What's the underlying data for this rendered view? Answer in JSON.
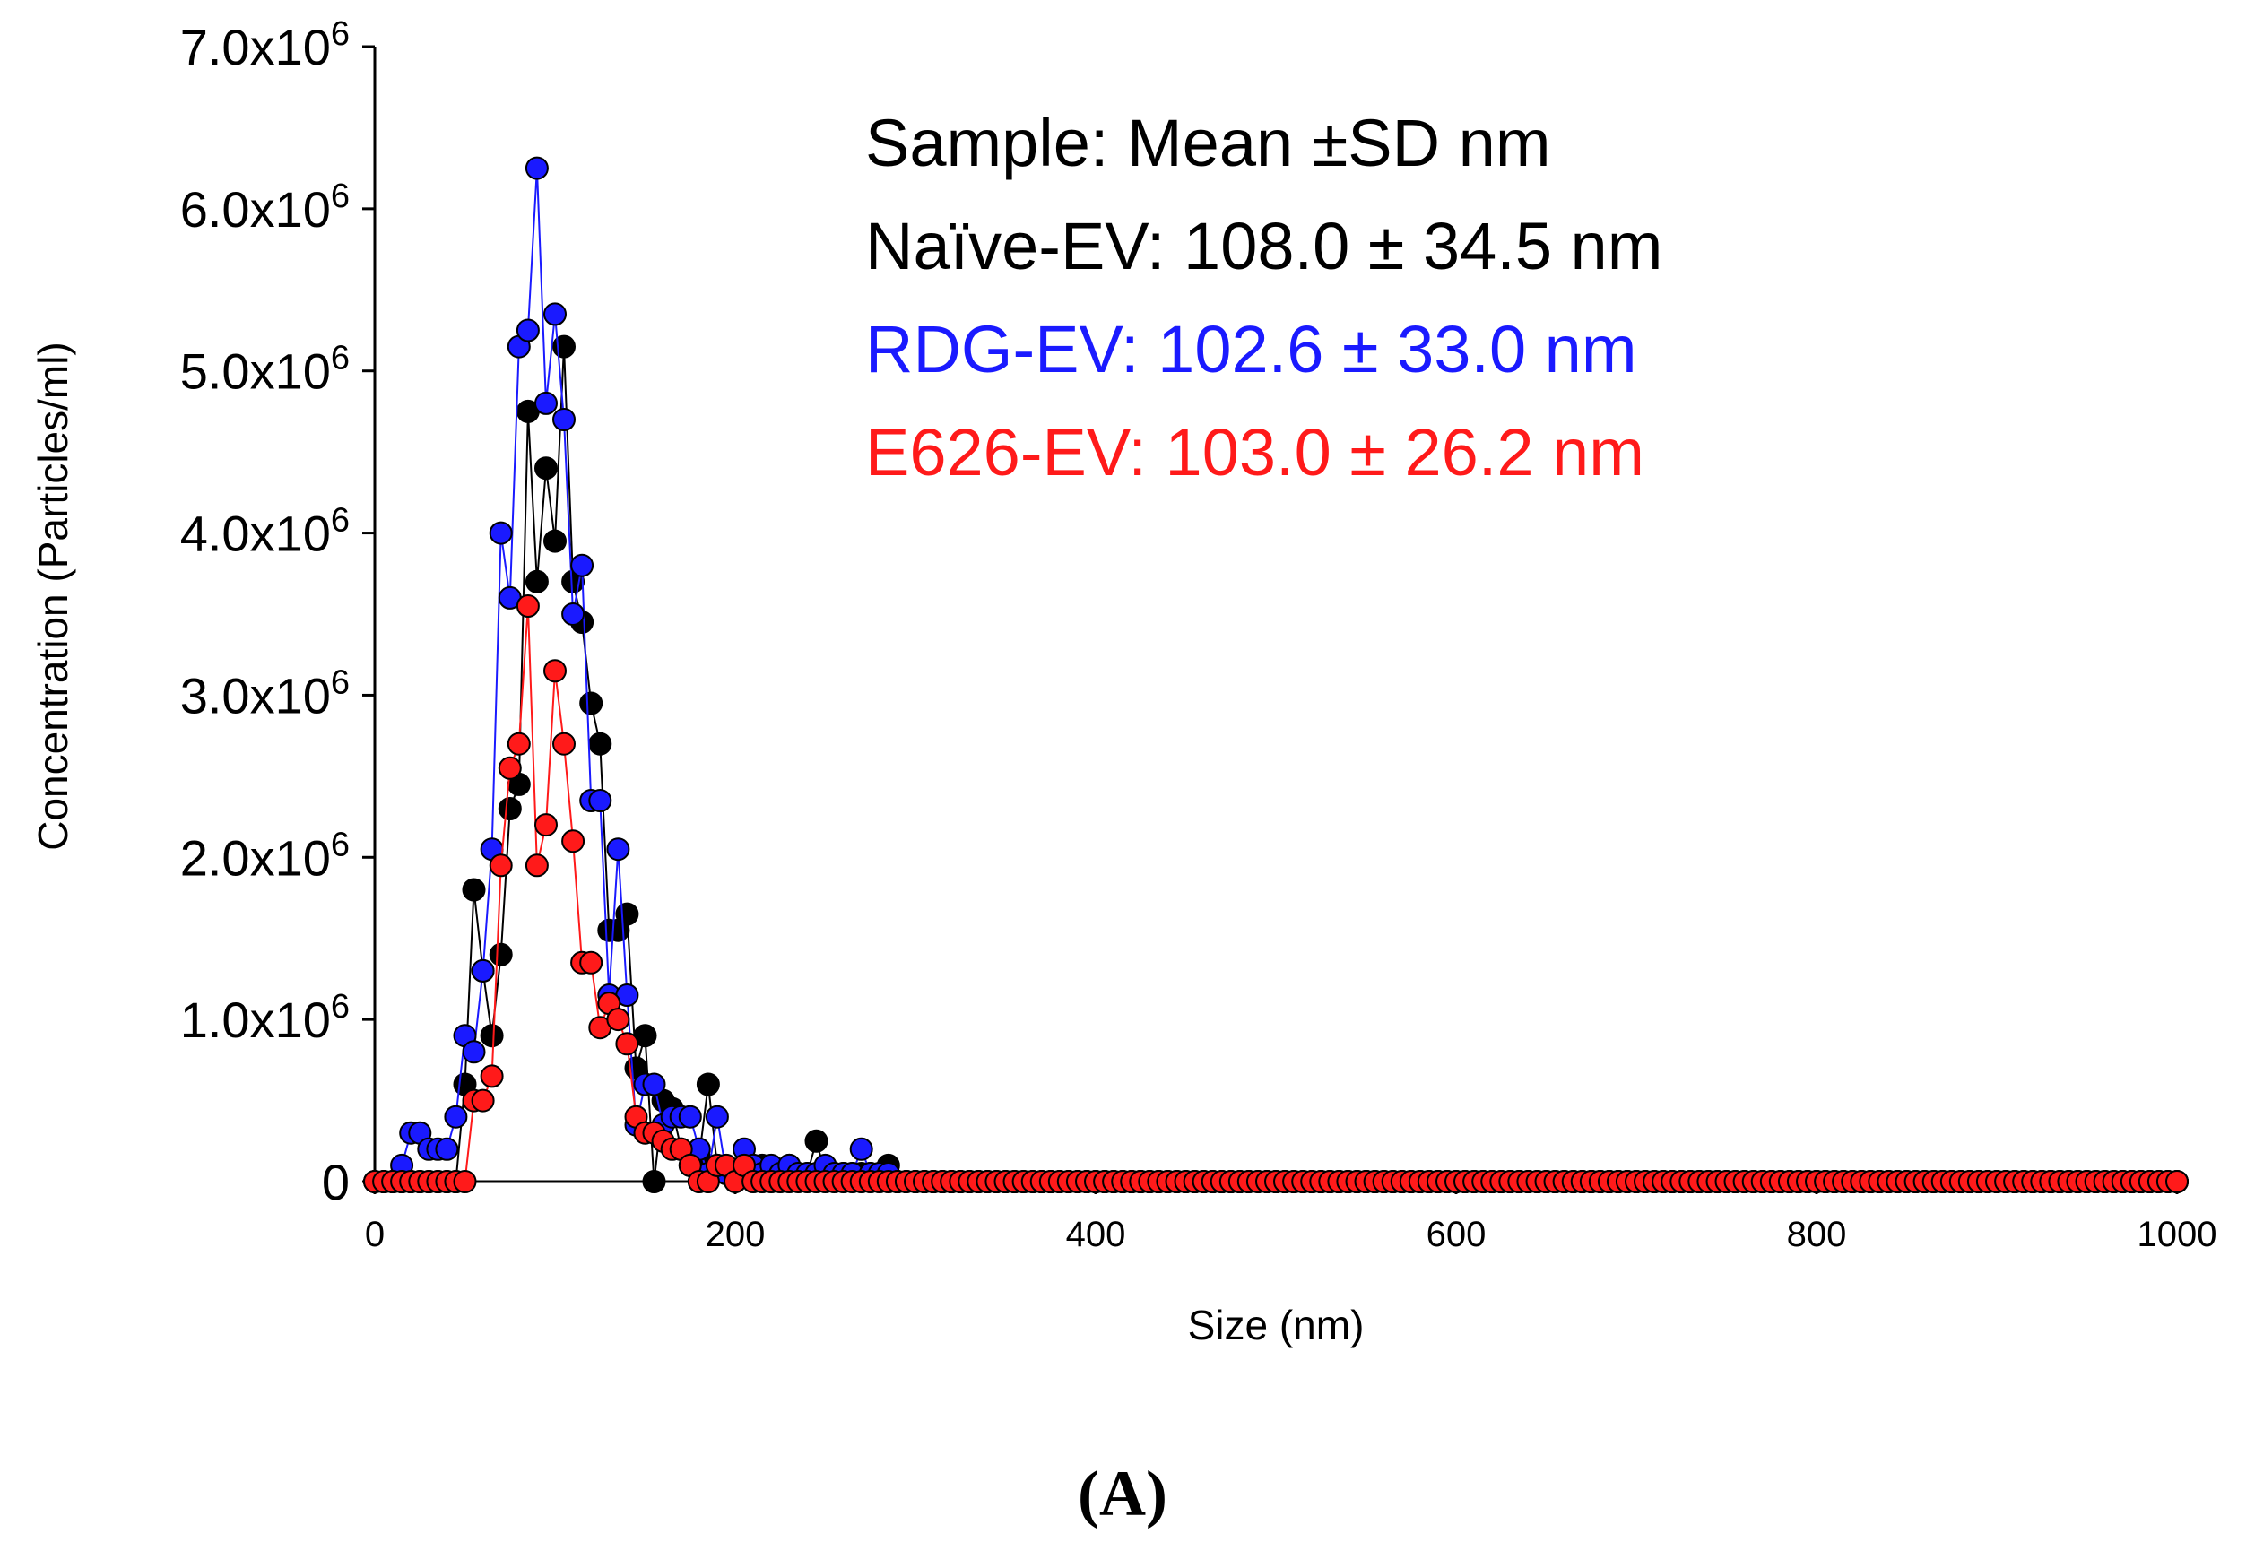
{
  "chart_data": {
    "type": "scatter",
    "panel_label": "(A)",
    "xlabel": "Size (nm)",
    "ylabel": "Concentration (Particles/ml)",
    "xlim": [
      0,
      1000
    ],
    "ylim": [
      0,
      7000000
    ],
    "x_ticks": [
      "0",
      "200",
      "400",
      "600",
      "800",
      "1000"
    ],
    "y_ticks": [
      {
        "base": "0",
        "exp": ""
      },
      {
        "base": "1.0x10",
        "exp": "6"
      },
      {
        "base": "2.0x10",
        "exp": "6"
      },
      {
        "base": "3.0x10",
        "exp": "6"
      },
      {
        "base": "4.0x10",
        "exp": "6"
      },
      {
        "base": "5.0x10",
        "exp": "6"
      },
      {
        "base": "6.0x10",
        "exp": "6"
      },
      {
        "base": "7.0x10",
        "exp": "6"
      }
    ],
    "legend": {
      "header": "Sample: Mean ±SD nm",
      "entries": [
        {
          "label": "Naïve-EV: 108.0 ± 34.5 nm",
          "color": "#000000"
        },
        {
          "label": "RDG-EV: 102.6 ± 33.0 nm",
          "color": "#1a1aff"
        },
        {
          "label": "E626-EV: 103.0 ± 26.2 nm",
          "color": "#ff1a1a"
        }
      ]
    },
    "step": 5,
    "series": [
      {
        "name": "Naïve-EV",
        "color": "#000000",
        "points": [
          [
            0,
            0
          ],
          [
            5,
            0
          ],
          [
            10,
            0
          ],
          [
            15,
            0
          ],
          [
            20,
            0
          ],
          [
            25,
            0
          ],
          [
            30,
            0
          ],
          [
            35,
            0
          ],
          [
            40,
            0
          ],
          [
            45,
            0
          ],
          [
            50,
            600000
          ],
          [
            55,
            1800000
          ],
          [
            60,
            1300000
          ],
          [
            65,
            900000
          ],
          [
            70,
            1400000
          ],
          [
            75,
            2300000
          ],
          [
            80,
            2450000
          ],
          [
            85,
            4750000
          ],
          [
            90,
            3700000
          ],
          [
            95,
            4400000
          ],
          [
            100,
            3950000
          ],
          [
            105,
            5150000
          ],
          [
            110,
            3700000
          ],
          [
            115,
            3450000
          ],
          [
            120,
            2950000
          ],
          [
            125,
            2700000
          ],
          [
            130,
            1550000
          ],
          [
            135,
            1550000
          ],
          [
            140,
            1650000
          ],
          [
            145,
            700000
          ],
          [
            150,
            900000
          ],
          [
            155,
            0
          ],
          [
            160,
            500000
          ],
          [
            165,
            450000
          ],
          [
            170,
            200000
          ],
          [
            175,
            100000
          ],
          [
            180,
            150000
          ],
          [
            185,
            600000
          ],
          [
            190,
            100000
          ],
          [
            195,
            50000
          ],
          [
            200,
            50000
          ],
          [
            205,
            50000
          ],
          [
            210,
            100000
          ],
          [
            215,
            100000
          ],
          [
            220,
            50000
          ],
          [
            225,
            50000
          ],
          [
            230,
            100000
          ],
          [
            235,
            50000
          ],
          [
            240,
            50000
          ],
          [
            245,
            250000
          ],
          [
            250,
            50000
          ],
          [
            255,
            50000
          ],
          [
            260,
            50000
          ],
          [
            265,
            50000
          ],
          [
            270,
            50000
          ],
          [
            275,
            50000
          ],
          [
            280,
            50000
          ],
          [
            285,
            100000
          ],
          [
            290,
            0
          ],
          [
            295,
            0
          ],
          [
            300,
            0
          ]
        ]
      },
      {
        "name": "RDG-EV",
        "color": "#1a1aff",
        "points": [
          [
            0,
            0
          ],
          [
            5,
            0
          ],
          [
            10,
            0
          ],
          [
            15,
            100000
          ],
          [
            20,
            300000
          ],
          [
            25,
            300000
          ],
          [
            30,
            200000
          ],
          [
            35,
            200000
          ],
          [
            40,
            200000
          ],
          [
            45,
            400000
          ],
          [
            50,
            900000
          ],
          [
            55,
            800000
          ],
          [
            60,
            1300000
          ],
          [
            65,
            2050000
          ],
          [
            70,
            4000000
          ],
          [
            75,
            3600000
          ],
          [
            80,
            5150000
          ],
          [
            85,
            5250000
          ],
          [
            90,
            6250000
          ],
          [
            95,
            4800000
          ],
          [
            100,
            5350000
          ],
          [
            105,
            4700000
          ],
          [
            110,
            3500000
          ],
          [
            115,
            3800000
          ],
          [
            120,
            2350000
          ],
          [
            125,
            2350000
          ],
          [
            130,
            1150000
          ],
          [
            135,
            2050000
          ],
          [
            140,
            1150000
          ],
          [
            145,
            350000
          ],
          [
            150,
            600000
          ],
          [
            155,
            600000
          ],
          [
            160,
            350000
          ],
          [
            165,
            400000
          ],
          [
            170,
            400000
          ],
          [
            175,
            400000
          ],
          [
            180,
            200000
          ],
          [
            185,
            50000
          ],
          [
            190,
            400000
          ],
          [
            195,
            50000
          ],
          [
            200,
            50000
          ],
          [
            205,
            200000
          ],
          [
            210,
            100000
          ],
          [
            215,
            50000
          ],
          [
            220,
            100000
          ],
          [
            225,
            50000
          ],
          [
            230,
            100000
          ],
          [
            235,
            50000
          ],
          [
            240,
            50000
          ],
          [
            245,
            50000
          ],
          [
            250,
            100000
          ],
          [
            255,
            50000
          ],
          [
            260,
            50000
          ],
          [
            265,
            50000
          ],
          [
            270,
            200000
          ],
          [
            275,
            50000
          ],
          [
            280,
            50000
          ],
          [
            285,
            50000
          ],
          [
            290,
            0
          ],
          [
            295,
            0
          ],
          [
            300,
            0
          ]
        ]
      },
      {
        "name": "E626-EV",
        "color": "#ff1a1a",
        "points": [
          [
            0,
            0
          ],
          [
            5,
            0
          ],
          [
            10,
            0
          ],
          [
            15,
            0
          ],
          [
            20,
            0
          ],
          [
            25,
            0
          ],
          [
            30,
            0
          ],
          [
            35,
            0
          ],
          [
            40,
            0
          ],
          [
            45,
            0
          ],
          [
            50,
            0
          ],
          [
            55,
            500000
          ],
          [
            60,
            500000
          ],
          [
            65,
            650000
          ],
          [
            70,
            1950000
          ],
          [
            75,
            2550000
          ],
          [
            80,
            2700000
          ],
          [
            85,
            3550000
          ],
          [
            90,
            1950000
          ],
          [
            95,
            2200000
          ],
          [
            100,
            3150000
          ],
          [
            105,
            2700000
          ],
          [
            110,
            2100000
          ],
          [
            115,
            1350000
          ],
          [
            120,
            1350000
          ],
          [
            125,
            950000
          ],
          [
            130,
            1100000
          ],
          [
            135,
            1000000
          ],
          [
            140,
            850000
          ],
          [
            145,
            400000
          ],
          [
            150,
            300000
          ],
          [
            155,
            300000
          ],
          [
            160,
            250000
          ],
          [
            165,
            200000
          ],
          [
            170,
            200000
          ],
          [
            175,
            100000
          ],
          [
            180,
            0
          ],
          [
            185,
            0
          ],
          [
            190,
            100000
          ],
          [
            195,
            100000
          ],
          [
            200,
            0
          ],
          [
            205,
            100000
          ],
          [
            210,
            0
          ],
          [
            215,
            0
          ],
          [
            220,
            0
          ],
          [
            225,
            0
          ],
          [
            230,
            0
          ],
          [
            235,
            0
          ],
          [
            240,
            0
          ],
          [
            245,
            0
          ],
          [
            250,
            0
          ],
          [
            255,
            0
          ],
          [
            260,
            0
          ],
          [
            265,
            0
          ],
          [
            270,
            0
          ],
          [
            275,
            0
          ],
          [
            280,
            0
          ],
          [
            285,
            0
          ],
          [
            290,
            0
          ],
          [
            295,
            0
          ],
          [
            300,
            0
          ]
        ]
      }
    ]
  }
}
